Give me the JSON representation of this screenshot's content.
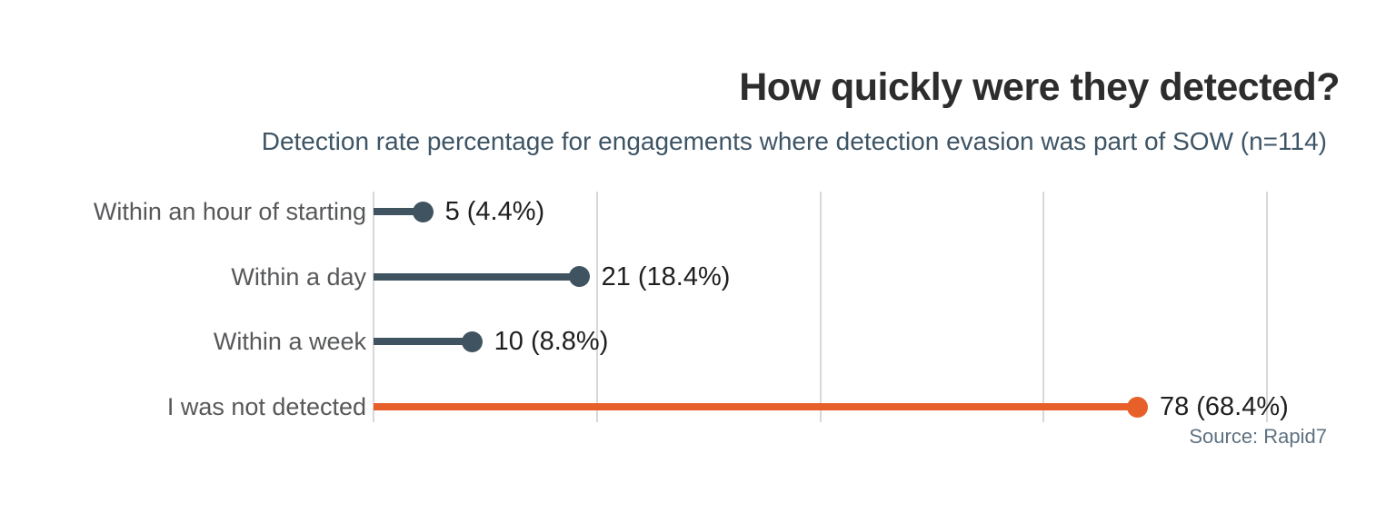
{
  "header": {
    "title": "How quickly were they detected?",
    "subtitle": "Detection rate percentage for engagements where detection evasion was part of SOW (n=114)"
  },
  "footer": {
    "source": "Source: Rapid7"
  },
  "chart_data": {
    "type": "bar",
    "style": "lollipop",
    "orientation": "horizontal",
    "title": "How quickly were they detected?",
    "subtitle": "Detection rate percentage for engagements where detection evasion was part of SOW (n=114)",
    "sample_size": 114,
    "categories": [
      "Within an hour of starting",
      "Within a day",
      "Within a week",
      "I was not detected"
    ],
    "points": [
      {
        "category": "Within an hour of starting",
        "count": 5,
        "percent": 4.4,
        "label": "5 (4.4%)",
        "color": "#3f5360"
      },
      {
        "category": "Within a day",
        "count": 21,
        "percent": 18.4,
        "label": "21 (18.4%)",
        "color": "#3f5360"
      },
      {
        "category": "Within a week",
        "count": 10,
        "percent": 8.8,
        "label": "10 (8.8%)",
        "color": "#3f5360"
      },
      {
        "category": "I was not detected",
        "count": 78,
        "percent": 68.4,
        "label": "78 (68.4%)",
        "color": "#e7602a"
      }
    ],
    "highlight_category": "I was not detected",
    "xlabel": "",
    "ylabel": "",
    "xlim": [
      0,
      85
    ],
    "gridlines_pct": [
      0,
      20,
      40,
      60,
      80
    ],
    "grid": true,
    "tick_labels_shown": false,
    "legend": "none",
    "source": "Source: Rapid7",
    "colors": {
      "default_point": "#3f5360",
      "highlight_point": "#e7602a",
      "gridline": "#d8d8d8",
      "title": "#2d2d2d",
      "subtitle": "#3e5566",
      "category_label": "#57585a",
      "value_label": "#1f1f1f",
      "source": "#5f7181",
      "background": "#ffffff"
    }
  }
}
